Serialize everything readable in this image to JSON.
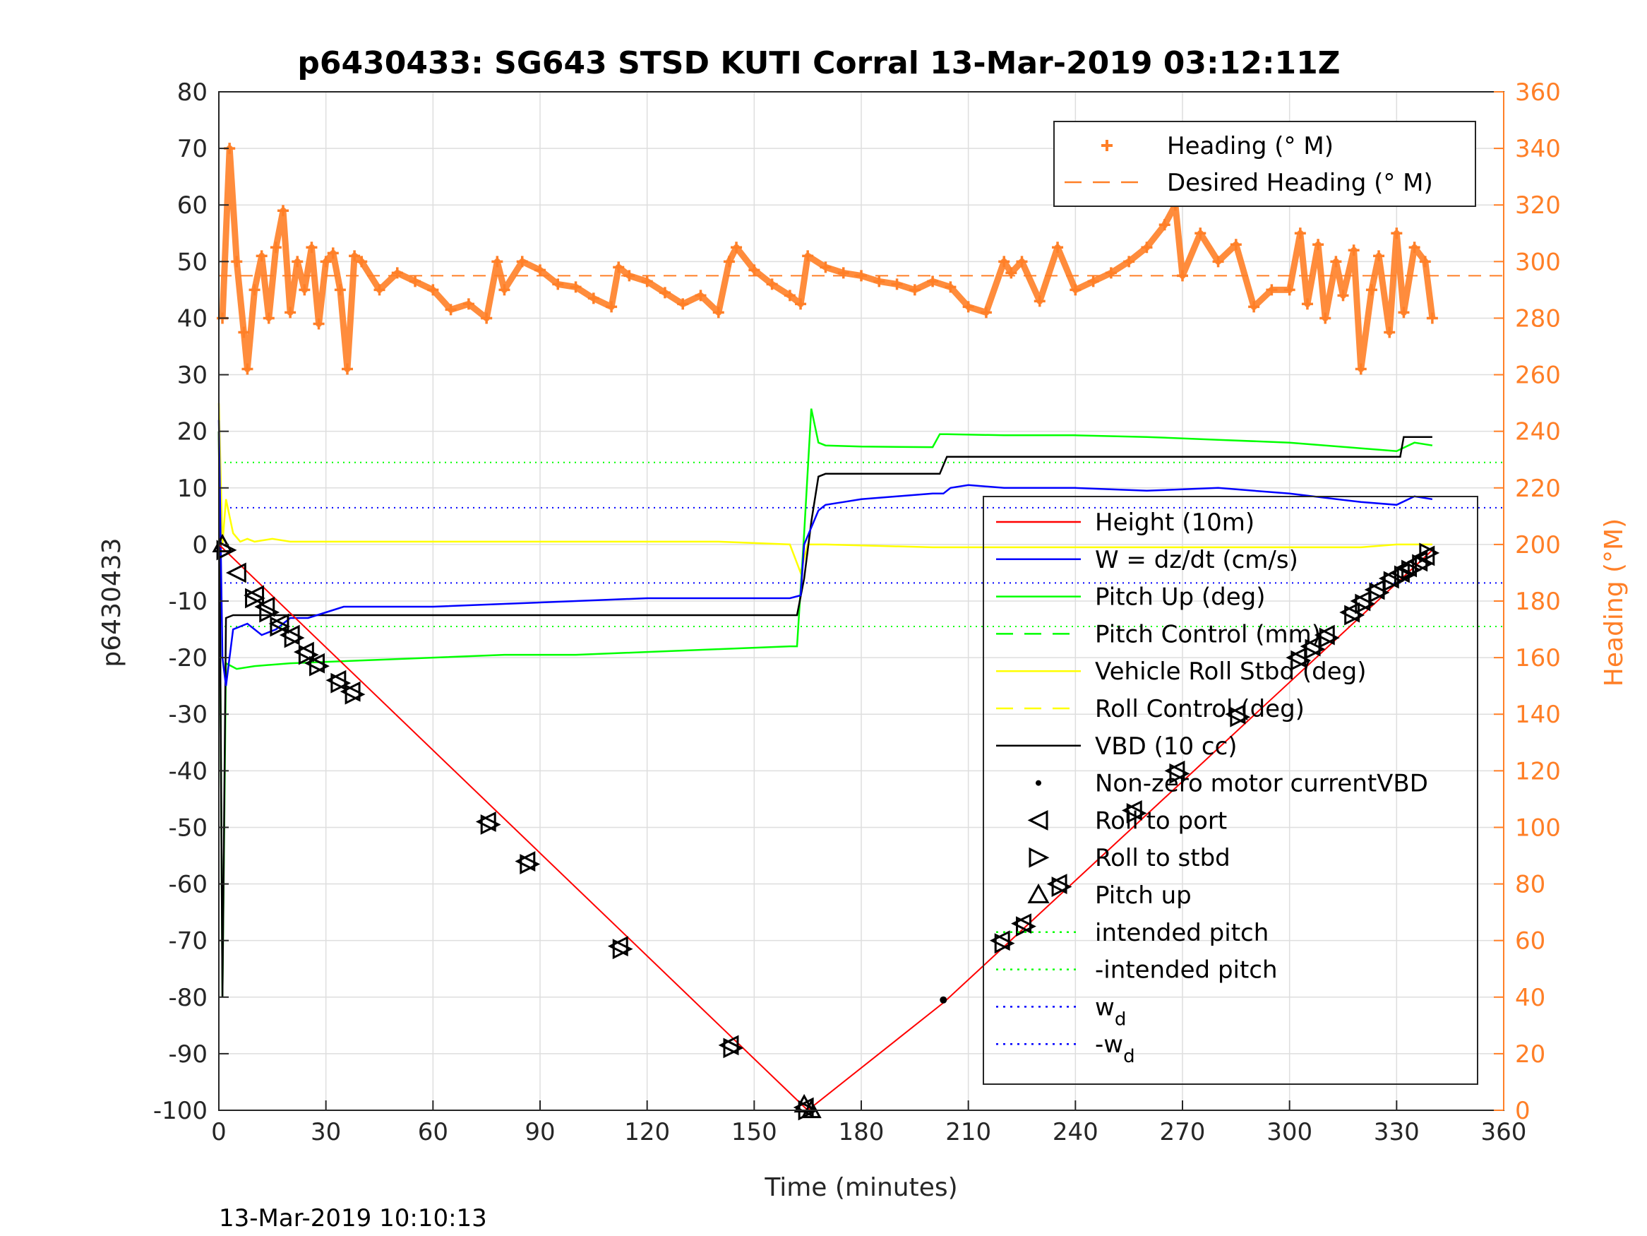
{
  "colors": {
    "heading": "#ff7f27",
    "height": "#ff0000",
    "w": "#0000ff",
    "pitch": "#00ff00",
    "roll": "#ffff00",
    "vbd": "#000000",
    "markers": "#000000"
  },
  "footer_timestamp": "13-Mar-2019 10:10:13",
  "chart_data": {
    "type": "line",
    "title": "p6430433: SG643 STSD KUTI Corral 13-Mar-2019 03:12:11Z",
    "xlabel": "Time (minutes)",
    "ylabel_left": "p6430433",
    "ylabel_right": "Heading (°M)",
    "xlim": [
      0,
      360
    ],
    "ylim_left": [
      -100,
      80
    ],
    "ylim_right": [
      0,
      360
    ],
    "x_ticks": [
      "0",
      "30",
      "60",
      "90",
      "120",
      "150",
      "180",
      "210",
      "240",
      "270",
      "300",
      "330",
      "360"
    ],
    "y_ticks_left": [
      "80",
      "70",
      "60",
      "50",
      "40",
      "30",
      "20",
      "10",
      "0",
      "-10",
      "-20",
      "-30",
      "-40",
      "-50",
      "-60",
      "-70",
      "-80",
      "-90",
      "-100"
    ],
    "y_ticks_right": [
      "360",
      "340",
      "320",
      "300",
      "280",
      "260",
      "240",
      "220",
      "200",
      "180",
      "160",
      "140",
      "120",
      "100",
      "80",
      "60",
      "40",
      "20",
      "0"
    ],
    "grid": true,
    "legend_top": {
      "placement": "top-right",
      "entries": [
        {
          "label": "Heading (° M)",
          "style": "plus-marker",
          "color": "#ff7f27"
        },
        {
          "label": "Desired Heading (° M)",
          "style": "dashed",
          "color": "#ff7f27"
        }
      ]
    },
    "legend_main": {
      "placement": "right",
      "entries": [
        {
          "label": "Height (10m)",
          "style": "solid",
          "color": "#ff0000"
        },
        {
          "label": "W = dz/dt (cm/s)",
          "style": "solid",
          "color": "#0000ff"
        },
        {
          "label": "Pitch Up (deg)",
          "style": "solid",
          "color": "#00ff00"
        },
        {
          "label": "Pitch Control (mm)",
          "style": "dashed",
          "color": "#00ff00"
        },
        {
          "label": "Vehicle Roll Stbd (deg)",
          "style": "solid",
          "color": "#ffff00"
        },
        {
          "label": "Roll Control (deg)",
          "style": "dashed",
          "color": "#ffff00"
        },
        {
          "label": "VBD (10 cc)",
          "style": "solid",
          "color": "#000000"
        },
        {
          "label": "Non-zero motor currentVBD",
          "style": "dot",
          "color": "#000000"
        },
        {
          "label": "Roll to port",
          "style": "tri-left",
          "color": "#000000"
        },
        {
          "label": "Roll to stbd",
          "style": "tri-right",
          "color": "#000000"
        },
        {
          "label": "Pitch up",
          "style": "tri-up",
          "color": "#000000"
        },
        {
          "label": "intended pitch",
          "style": "dotted",
          "color": "#00ff00"
        },
        {
          "label": "-intended pitch",
          "style": "dotted",
          "color": "#00ff00"
        },
        {
          "label": "w",
          "subscript": "d",
          "style": "dotted",
          "color": "#0000ff"
        },
        {
          "label": "-w",
          "subscript": "d",
          "style": "dotted",
          "color": "#0000ff"
        }
      ]
    },
    "reference_lines": {
      "intended_pitch": 14.5,
      "neg_intended_pitch": -14.5,
      "w_d": 6.5,
      "neg_w_d": -6.8,
      "desired_heading": 295
    },
    "series": [
      {
        "name": "Height (10m)",
        "axis": "left",
        "x": [
          0,
          165,
          203,
          340
        ],
        "y": [
          0,
          -100,
          -81,
          -1
        ]
      },
      {
        "name": "Heading (° M)",
        "axis": "right",
        "x": [
          1,
          3,
          5,
          7,
          8,
          10,
          12,
          14,
          16,
          18,
          20,
          22,
          24,
          26,
          28,
          30,
          32,
          34,
          36,
          38,
          40,
          45,
          50,
          55,
          60,
          65,
          70,
          75,
          78,
          80,
          85,
          90,
          95,
          100,
          105,
          110,
          112,
          115,
          120,
          125,
          130,
          135,
          140,
          143,
          145,
          150,
          155,
          160,
          163,
          165,
          170,
          175,
          180,
          185,
          190,
          195,
          200,
          205,
          210,
          215,
          220,
          222,
          225,
          230,
          235,
          240,
          245,
          250,
          255,
          260,
          265,
          268,
          270,
          275,
          280,
          285,
          290,
          295,
          300,
          303,
          305,
          308,
          310,
          313,
          315,
          318,
          320,
          323,
          325,
          328,
          330,
          332,
          335,
          338,
          340
        ],
        "y": [
          280,
          340,
          300,
          275,
          262,
          290,
          302,
          280,
          305,
          318,
          282,
          300,
          290,
          305,
          278,
          300,
          303,
          290,
          262,
          302,
          300,
          290,
          296,
          293,
          290,
          283,
          285,
          280,
          300,
          290,
          300,
          297,
          292,
          291,
          287,
          284,
          298,
          295,
          293,
          289,
          285,
          288,
          282,
          300,
          305,
          297,
          292,
          288,
          285,
          302,
          298,
          296,
          295,
          293,
          292,
          290,
          293,
          291,
          284,
          282,
          300,
          296,
          300,
          286,
          305,
          290,
          293,
          296,
          300,
          305,
          313,
          320,
          295,
          310,
          300,
          306,
          284,
          290,
          290,
          310,
          285,
          306,
          280,
          300,
          288,
          304,
          262,
          290,
          302,
          275,
          310,
          282,
          305,
          300,
          280
        ]
      },
      {
        "name": "W = dz/dt (cm/s)",
        "axis": "left",
        "x": [
          0,
          1,
          2,
          4,
          8,
          12,
          16,
          20,
          25,
          30,
          35,
          40,
          50,
          60,
          80,
          100,
          120,
          140,
          150,
          160,
          163,
          164,
          166,
          168,
          170,
          175,
          180,
          190,
          200,
          203,
          205,
          210,
          220,
          240,
          260,
          280,
          300,
          320,
          330,
          335,
          340
        ],
        "y": [
          22,
          -20,
          -25,
          -15,
          -14,
          -16,
          -15,
          -13,
          -13,
          -12,
          -11,
          -11,
          -11,
          -11,
          -10.5,
          -10,
          -9.5,
          -9.5,
          -9.5,
          -9.5,
          -9,
          0,
          3,
          6,
          7,
          7.5,
          8,
          8.5,
          9,
          9,
          10,
          10.5,
          10,
          10,
          9.5,
          10,
          9,
          7.5,
          7,
          8.5,
          8
        ]
      },
      {
        "name": "Pitch Up (deg)",
        "axis": "left",
        "x": [
          0,
          1,
          2,
          5,
          10,
          20,
          40,
          60,
          80,
          100,
          120,
          140,
          160,
          162,
          164,
          166,
          168,
          170,
          180,
          200,
          202,
          204,
          220,
          240,
          260,
          280,
          300,
          320,
          330,
          335,
          340
        ],
        "y": [
          20,
          -80,
          -21,
          -22,
          -21.5,
          -21,
          -20.5,
          -20,
          -19.5,
          -19.5,
          -19,
          -18.5,
          -18,
          -18,
          2,
          24,
          18,
          17.5,
          17.3,
          17.2,
          19.5,
          19.5,
          19.3,
          19.3,
          19,
          18.5,
          18,
          17,
          16.5,
          18,
          17.5
        ]
      },
      {
        "name": "VBD (10 cc)",
        "axis": "left",
        "x": [
          0,
          1,
          2,
          4,
          6,
          10,
          20,
          30,
          40,
          60,
          80,
          100,
          120,
          140,
          150,
          160,
          162,
          164,
          166,
          168,
          170,
          180,
          200,
          202,
          204,
          220,
          240,
          260,
          280,
          300,
          320,
          331,
          332,
          340
        ],
        "y": [
          20,
          -80,
          -13,
          -12.5,
          -12.5,
          -12.5,
          -12.5,
          -12.5,
          -12.5,
          -12.5,
          -12.5,
          -12.5,
          -12.5,
          -12.5,
          -12.5,
          -12.5,
          -12.5,
          -6,
          4,
          12,
          12.5,
          12.5,
          12.5,
          12.5,
          15.5,
          15.5,
          15.5,
          15.5,
          15.5,
          15.5,
          15.5,
          15.5,
          19,
          19
        ]
      },
      {
        "name": "Vehicle Roll Stbd (deg)",
        "axis": "left",
        "x": [
          0,
          1,
          2,
          4,
          6,
          8,
          10,
          15,
          20,
          25,
          30,
          40,
          60,
          80,
          100,
          120,
          140,
          160,
          163,
          165,
          170,
          200,
          240,
          270,
          300,
          320,
          330,
          340
        ],
        "y": [
          25,
          0,
          8,
          2,
          0.5,
          1,
          0.5,
          1,
          0.5,
          0.5,
          0.5,
          0.5,
          0.5,
          0.5,
          0.5,
          0.5,
          0.5,
          0,
          -5,
          0,
          0,
          -0.5,
          -0.5,
          -0.5,
          -0.5,
          -0.5,
          0,
          0
        ]
      },
      {
        "name": "Non-zero motor currentVBD",
        "axis": "left",
        "x": [
          203
        ],
        "y": [
          -80.5
        ]
      },
      {
        "name": "Roll to port",
        "axis": "left",
        "x": [
          5,
          10,
          13,
          17,
          20,
          24,
          27,
          33,
          37,
          75,
          86,
          112,
          143,
          164,
          219,
          225,
          235,
          256,
          268,
          285,
          302,
          306,
          310,
          317,
          320,
          324,
          328,
          331,
          333,
          336,
          338
        ],
        "y": [
          -5,
          -9,
          -11,
          -14,
          -16,
          -19,
          -21,
          -24,
          -26,
          -49,
          -56,
          -71,
          -88.5,
          -99.5,
          -70,
          -67,
          -60,
          -47,
          -40,
          -30,
          -20,
          -18,
          -16,
          -12,
          -10,
          -8,
          -6,
          -5,
          -4,
          -3,
          -2
        ]
      },
      {
        "name": "Roll to stbd",
        "axis": "left",
        "x": [
          2,
          10,
          14,
          17,
          21,
          25,
          28,
          34,
          38,
          76,
          87,
          113,
          144,
          165,
          220,
          226,
          236,
          257,
          269,
          286,
          303,
          307,
          311,
          318,
          321,
          325,
          329,
          332,
          334,
          337,
          339
        ],
        "y": [
          -1,
          -9.5,
          -12,
          -14.5,
          -16.5,
          -19.5,
          -21.5,
          -24.5,
          -26.5,
          -49.5,
          -56.5,
          -71.5,
          -89,
          -100,
          -70.5,
          -67.5,
          -60.5,
          -47.5,
          -40.5,
          -30.5,
          -20.5,
          -18.5,
          -16.5,
          -12.5,
          -10.5,
          -8.5,
          -6.5,
          -5.5,
          -4.5,
          -3.5,
          -1.5
        ]
      },
      {
        "name": "Pitch up",
        "axis": "left",
        "x": [
          1,
          164,
          166
        ],
        "y": [
          0,
          -99,
          -100
        ]
      }
    ]
  }
}
